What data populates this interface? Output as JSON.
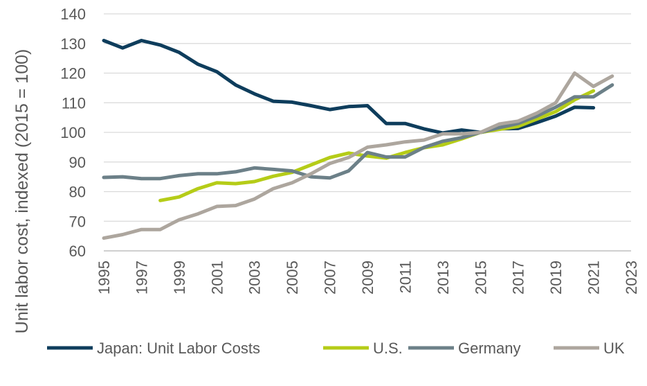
{
  "chart_data": {
    "type": "line",
    "title": "",
    "xlabel": "",
    "ylabel": "Unit labor cost, indexed (2015 = 100)",
    "xlim": [
      1995,
      2023
    ],
    "ylim": [
      60,
      140
    ],
    "x_ticks": [
      1995,
      1997,
      1999,
      2001,
      2003,
      2005,
      2007,
      2009,
      2011,
      2013,
      2015,
      2017,
      2019,
      2021,
      2023
    ],
    "y_ticks": [
      60,
      70,
      80,
      90,
      100,
      110,
      120,
      130,
      140
    ],
    "grid": "horizontal",
    "legend_position": "bottom",
    "series": [
      {
        "name": "Japan: Unit Labor Costs",
        "color": "#0e3d5c",
        "x": [
          1995,
          1996,
          1997,
          1998,
          1999,
          2000,
          2001,
          2002,
          2003,
          2004,
          2005,
          2006,
          2007,
          2008,
          2009,
          2010,
          2011,
          2012,
          2013,
          2014,
          2015,
          2016,
          2017,
          2018,
          2019,
          2020,
          2021
        ],
        "values": [
          131,
          128.5,
          131,
          129.5,
          127,
          123,
          120.5,
          116,
          113,
          110.5,
          110.2,
          109,
          107.7,
          108.7,
          109,
          103,
          103,
          101.2,
          99.8,
          100.8,
          100,
          101.2,
          101.3,
          103.3,
          105.5,
          108.5,
          108.3
        ]
      },
      {
        "name": "U.S.",
        "color": "#b5cc18",
        "x": [
          1998,
          1999,
          2000,
          2001,
          2002,
          2003,
          2004,
          2005,
          2006,
          2007,
          2008,
          2009,
          2010,
          2011,
          2012,
          2013,
          2014,
          2015,
          2016,
          2017,
          2018,
          2019,
          2020,
          2021
        ],
        "values": [
          77,
          78.2,
          81,
          83,
          82.7,
          83.4,
          85.2,
          86.5,
          89,
          91.5,
          93,
          92,
          91.3,
          93.2,
          94.8,
          95.8,
          97.8,
          100,
          101,
          102,
          104.5,
          107,
          111,
          114
        ]
      },
      {
        "name": "Germany",
        "color": "#6c8088",
        "x": [
          1995,
          1996,
          1997,
          1998,
          1999,
          2000,
          2001,
          2002,
          2003,
          2004,
          2005,
          2006,
          2007,
          2008,
          2009,
          2010,
          2011,
          2012,
          2013,
          2014,
          2015,
          2016,
          2017,
          2018,
          2019,
          2020,
          2021,
          2022
        ],
        "values": [
          84.8,
          85,
          84.4,
          84.4,
          85.4,
          86,
          86,
          86.7,
          88,
          87.5,
          87,
          85,
          84.6,
          87,
          93.2,
          91.7,
          91.7,
          94.9,
          97,
          98.2,
          100,
          101.6,
          103,
          105.5,
          108.5,
          112,
          112,
          116
        ]
      },
      {
        "name": "UK",
        "color": "#ada69e",
        "x": [
          1995,
          1996,
          1997,
          1998,
          1999,
          2000,
          2001,
          2002,
          2003,
          2004,
          2005,
          2006,
          2007,
          2008,
          2009,
          2010,
          2011,
          2012,
          2013,
          2014,
          2015,
          2016,
          2017,
          2018,
          2019,
          2020,
          2021,
          2022
        ],
        "values": [
          64.3,
          65.5,
          67.2,
          67.2,
          70.5,
          72.5,
          75,
          75.3,
          77.5,
          81,
          83,
          86,
          89.5,
          91.5,
          95,
          95.8,
          96.8,
          97.4,
          99.5,
          99.5,
          100,
          102.8,
          103.8,
          106.5,
          110,
          120,
          115.5,
          119
        ]
      }
    ]
  }
}
